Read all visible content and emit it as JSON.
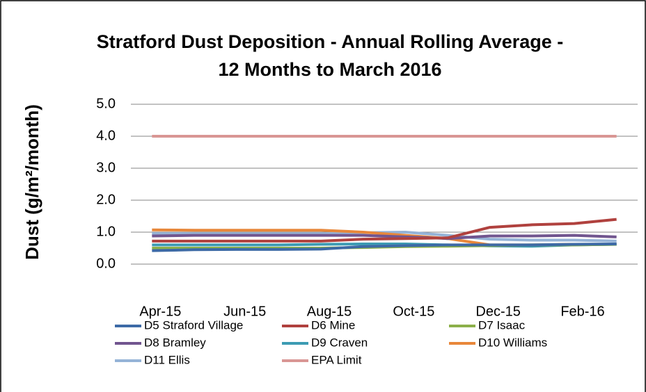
{
  "chart_data": {
    "type": "line",
    "title": "Stratford Dust Deposition - Annual Rolling Average - 12 Months to March 2016",
    "ylabel": "Dust (g/m²/month)",
    "categories": [
      "Apr-15",
      null,
      "Jun-15",
      null,
      "Aug-15",
      null,
      "Oct-15",
      null,
      "Dec-15",
      null,
      "Feb-16",
      null
    ],
    "ylim": [
      0,
      5
    ],
    "yticks": [
      {
        "value": 0,
        "label": "0.0"
      },
      {
        "value": 1,
        "label": "1.0"
      },
      {
        "value": 2,
        "label": "2.0"
      },
      {
        "value": 3,
        "label": "3.0"
      },
      {
        "value": 4,
        "label": "4.0"
      },
      {
        "value": 5,
        "label": "5.0"
      }
    ],
    "grid": true,
    "legend": "bottom",
    "series": [
      {
        "name": "D5 Straford Village",
        "color": "#3D6AA6",
        "values": [
          0.42,
          0.45,
          0.46,
          0.46,
          0.47,
          0.55,
          0.58,
          0.6,
          0.6,
          0.6,
          0.62,
          0.63
        ]
      },
      {
        "name": "D6 Mine",
        "color": "#B0413E",
        "values": [
          0.72,
          0.72,
          0.72,
          0.72,
          0.72,
          0.78,
          0.8,
          0.82,
          1.15,
          1.23,
          1.27,
          1.4
        ]
      },
      {
        "name": "D7 Isaac",
        "color": "#8CB04A",
        "values": [
          0.5,
          0.5,
          0.5,
          0.5,
          0.5,
          0.52,
          0.55,
          0.56,
          0.58,
          0.6,
          0.6,
          0.62
        ]
      },
      {
        "name": "D8 Bramley",
        "color": "#71558F",
        "values": [
          0.88,
          0.9,
          0.9,
          0.9,
          0.9,
          0.9,
          0.85,
          0.8,
          0.88,
          0.88,
          0.9,
          0.85
        ]
      },
      {
        "name": "D9 Craven",
        "color": "#3D9BB3",
        "values": [
          0.6,
          0.6,
          0.6,
          0.6,
          0.62,
          0.63,
          0.63,
          0.6,
          0.57,
          0.56,
          0.6,
          0.62
        ]
      },
      {
        "name": "D10 Williams",
        "color": "#E8873A",
        "values": [
          1.07,
          1.06,
          1.06,
          1.06,
          1.06,
          1.0,
          0.9,
          0.8,
          0.6,
          0.6,
          0.62,
          0.62
        ]
      },
      {
        "name": "D11 Ellis",
        "color": "#95B3D7",
        "values": [
          0.95,
          0.95,
          0.95,
          0.95,
          0.95,
          0.98,
          1.0,
          0.9,
          0.78,
          0.75,
          0.75,
          0.72
        ]
      },
      {
        "name": "EPA Limit",
        "color": "#D99694",
        "values": [
          4,
          4,
          4,
          4,
          4,
          4,
          4,
          4,
          4,
          4,
          4,
          4
        ]
      }
    ]
  }
}
